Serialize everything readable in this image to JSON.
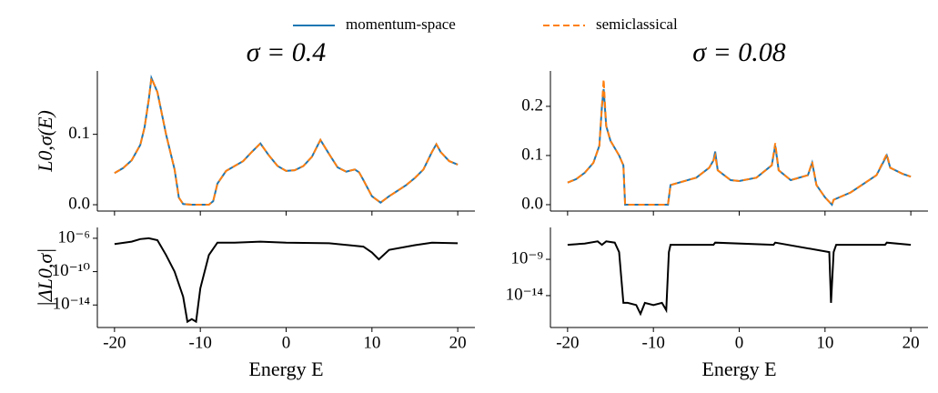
{
  "chart_data": [
    {
      "type": "line",
      "title": "σ = 0.4",
      "y_label": "L0,σ(E)",
      "x": [
        -20,
        -19,
        -18,
        -17,
        -16.5,
        -16,
        -15.7,
        -15,
        -14,
        -13,
        -12.5,
        -12,
        -11,
        -10,
        -9,
        -8.5,
        -8,
        -7,
        -6,
        -5,
        -4,
        -3,
        -2,
        -1,
        0,
        1,
        2,
        3,
        4,
        5,
        6,
        7,
        8,
        8.5,
        9,
        10,
        11,
        12,
        13,
        14,
        15,
        16,
        17,
        17.5,
        18,
        19,
        20
      ],
      "series": [
        {
          "name": "momentum-space",
          "color": "#1f77b4",
          "dash": false,
          "values": [
            0.045,
            0.052,
            0.063,
            0.085,
            0.11,
            0.15,
            0.18,
            0.16,
            0.1,
            0.05,
            0.01,
            0.001,
            0,
            0,
            0,
            0.005,
            0.03,
            0.048,
            0.055,
            0.062,
            0.075,
            0.087,
            0.07,
            0.055,
            0.048,
            0.049,
            0.055,
            0.068,
            0.092,
            0.072,
            0.053,
            0.047,
            0.05,
            0.046,
            0.035,
            0.012,
            0.003,
            0.012,
            0.02,
            0.028,
            0.038,
            0.05,
            0.075,
            0.086,
            0.075,
            0.062,
            0.057
          ]
        },
        {
          "name": "semiclassical",
          "color": "#ff7f0e",
          "dash": true,
          "values": [
            0.045,
            0.052,
            0.063,
            0.085,
            0.11,
            0.15,
            0.18,
            0.16,
            0.1,
            0.05,
            0.01,
            0.001,
            0,
            0,
            0,
            0.005,
            0.03,
            0.048,
            0.055,
            0.062,
            0.075,
            0.087,
            0.07,
            0.055,
            0.048,
            0.049,
            0.055,
            0.068,
            0.092,
            0.072,
            0.053,
            0.047,
            0.05,
            0.046,
            0.035,
            0.012,
            0.003,
            0.012,
            0.02,
            0.028,
            0.038,
            0.05,
            0.075,
            0.086,
            0.075,
            0.062,
            0.057
          ]
        }
      ],
      "xlim": [
        -22,
        22
      ],
      "ylim": [
        -0.009,
        0.19
      ],
      "yticks": [
        {
          "value": 0,
          "label": "0.0"
        },
        0.1
      ]
    },
    {
      "type": "line",
      "title": "σ = 0.08",
      "x": [
        -20,
        -19,
        -18,
        -17,
        -16.3,
        -16,
        -15.8,
        -15.5,
        -15,
        -14,
        -13.5,
        -13.3,
        -12,
        -10,
        -8.3,
        -8,
        -7,
        -5,
        -3.5,
        -3,
        -2.8,
        -2.5,
        -1,
        0,
        2,
        3.8,
        4.2,
        4.6,
        6,
        8,
        8.5,
        9,
        10,
        10.8,
        11,
        13,
        16,
        17.2,
        17.6,
        19,
        20
      ],
      "series": [
        {
          "color": "#1f77b4",
          "dash": false,
          "values": [
            0.045,
            0.052,
            0.065,
            0.085,
            0.12,
            0.2,
            0.235,
            0.16,
            0.13,
            0.1,
            0.08,
            0,
            0,
            0,
            0,
            0.04,
            0.045,
            0.055,
            0.075,
            0.09,
            0.108,
            0.07,
            0.05,
            0.048,
            0.055,
            0.08,
            0.12,
            0.07,
            0.05,
            0.06,
            0.085,
            0.04,
            0.015,
            0,
            0.01,
            0.025,
            0.06,
            0.1,
            0.075,
            0.063,
            0.057
          ]
        },
        {
          "color": "#ff7f0e",
          "dash": true,
          "values": [
            0.045,
            0.052,
            0.065,
            0.085,
            0.12,
            0.2,
            0.255,
            0.16,
            0.13,
            0.1,
            0.08,
            0,
            0,
            0,
            0,
            0.04,
            0.045,
            0.055,
            0.075,
            0.09,
            0.1,
            0.07,
            0.05,
            0.048,
            0.055,
            0.08,
            0.125,
            0.07,
            0.05,
            0.06,
            0.087,
            0.04,
            0.015,
            0,
            0.01,
            0.025,
            0.06,
            0.103,
            0.075,
            0.063,
            0.057
          ]
        }
      ],
      "xlim": [
        -22,
        22
      ],
      "ylim": [
        -0.013,
        0.272
      ],
      "yticks": [
        {
          "value": 0,
          "label": "0.0"
        },
        0.1,
        0.2
      ]
    },
    {
      "type": "line",
      "y_label": "|ΔL0,σ|",
      "x_label": "Energy E",
      "log_y": true,
      "x": [
        -20,
        -18,
        -17,
        -16,
        -15,
        -14,
        -13,
        -12,
        -11.5,
        -11,
        -10.5,
        -10,
        -9,
        -8,
        -6,
        -3,
        0,
        5,
        9,
        10,
        10.8,
        12,
        15,
        17,
        20
      ],
      "series": [
        {
          "color": "#000000",
          "dash": false,
          "values": [
            2e-07,
            4e-07,
            8e-07,
            1e-06,
            6e-07,
            1e-08,
            1e-10,
            1e-13,
            1e-16,
            2e-16,
            1e-16,
            1e-12,
            1e-08,
            3e-07,
            3e-07,
            4e-07,
            3e-07,
            2.5e-07,
            1e-07,
            2e-08,
            3e-09,
            4e-08,
            1.5e-07,
            3e-07,
            2.5e-07
          ]
        }
      ],
      "xlim": [
        -22,
        22
      ],
      "ylim": [
        2e-17,
        2e-05
      ],
      "yticks": [
        {
          "value": 1e-06,
          "label": "10⁻⁶"
        },
        {
          "value": 1e-10,
          "label": "10⁻¹⁰"
        },
        {
          "value": 1e-14,
          "label": "10⁻¹⁴"
        }
      ],
      "xticks": [
        -20,
        -10,
        0,
        10,
        20
      ]
    },
    {
      "type": "line",
      "x_label": "Energy E",
      "log_y": true,
      "x": [
        -20,
        -18,
        -16.5,
        -16,
        -15.5,
        -14.5,
        -14,
        -13.5,
        -13,
        -12,
        -11.5,
        -11,
        -10,
        -9,
        -8.5,
        -8.2,
        -8,
        -3,
        -2.8,
        4,
        4.2,
        10.5,
        10.7,
        11,
        11.3,
        17,
        17.2,
        20
      ],
      "series": [
        {
          "color": "#000000",
          "dash": false,
          "values": [
            1e-07,
            1.5e-07,
            3e-07,
            1e-07,
            3e-07,
            2e-07,
            1e-08,
            1e-15,
            1e-15,
            5e-16,
            3e-17,
            1e-15,
            5e-16,
            1e-15,
            1e-16,
            1e-08,
            1e-07,
            1e-07,
            2e-07,
            1e-07,
            2e-07,
            1e-08,
            1e-15,
            1e-08,
            1e-07,
            1e-07,
            2e-07,
            1e-07
          ]
        }
      ],
      "xlim": [
        -22,
        22
      ],
      "ylim": [
        4e-19,
        2.5e-05
      ],
      "yticks": [
        {
          "value": 1e-09,
          "label": "10⁻⁹"
        },
        {
          "value": 1e-14,
          "label": "10⁻¹⁴"
        }
      ],
      "xticks": [
        -20,
        -10,
        0,
        10,
        20
      ]
    }
  ]
}
